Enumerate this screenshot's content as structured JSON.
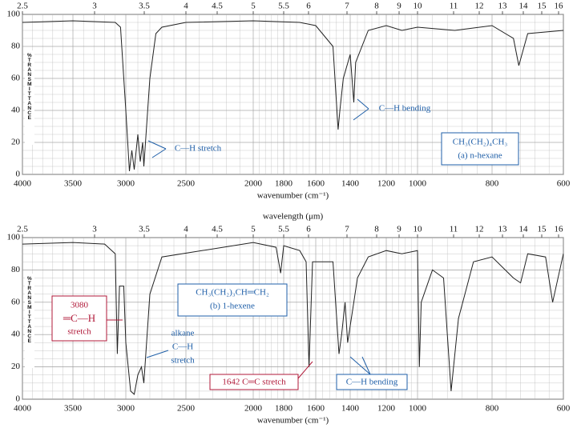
{
  "chart_data": [
    {
      "type": "line",
      "x": [
        4000,
        3500,
        3100,
        3050,
        3000,
        2970,
        2950,
        2930,
        2900,
        2880,
        2860,
        2850,
        2800,
        2750,
        2700,
        2500,
        2000,
        1700,
        1600,
        1500,
        1470,
        1460,
        1440,
        1400,
        1380,
        1370,
        1300,
        1200,
        1100,
        1000,
        900,
        800,
        740,
        725,
        700,
        600
      ],
      "values": [
        95,
        96,
        95,
        92,
        40,
        2,
        15,
        3,
        25,
        8,
        20,
        5,
        60,
        88,
        92,
        95,
        96,
        95,
        93,
        80,
        28,
        40,
        60,
        75,
        45,
        70,
        90,
        93,
        90,
        92,
        90,
        93,
        85,
        68,
        88,
        90
      ],
      "color": "#222222",
      "xlim": [
        4000,
        600
      ],
      "xticks": [
        4000,
        3500,
        3000,
        2500,
        2000,
        1800,
        1600,
        1400,
        1200,
        1000,
        800,
        600
      ],
      "x2ticks": [
        2.5,
        3,
        3.5,
        4,
        4.5,
        5,
        5.5,
        6,
        7,
        8,
        9,
        10,
        11,
        12,
        13,
        14,
        15,
        16
      ],
      "ylim": [
        0,
        100
      ],
      "yticks": [
        0,
        20,
        40,
        60,
        80,
        100
      ],
      "grid": true,
      "xlabel": "wavenumber (cm⁻¹)",
      "ylabel": "%TRANSMITTANCE",
      "formula": "CH₃(CH₂)₄CH₃",
      "caption": "(a) n-hexane",
      "annotations": [
        "C—H stretch",
        "C—H bending"
      ]
    },
    {
      "type": "line",
      "x": [
        4000,
        3500,
        3200,
        3100,
        3080,
        3060,
        3020,
        3000,
        2960,
        2930,
        2900,
        2870,
        2850,
        2800,
        2700,
        2000,
        1850,
        1820,
        1800,
        1700,
        1660,
        1642,
        1620,
        1500,
        1465,
        1450,
        1430,
        1415,
        1380,
        1360,
        1300,
        1200,
        1100,
        1000,
        995,
        990,
        960,
        930,
        910,
        890,
        850,
        800,
        740,
        720,
        700,
        650,
        630,
        600
      ],
      "values": [
        96,
        97,
        96,
        90,
        28,
        70,
        70,
        35,
        5,
        3,
        15,
        20,
        10,
        65,
        88,
        97,
        94,
        78,
        95,
        92,
        85,
        20,
        85,
        85,
        28,
        40,
        60,
        35,
        60,
        75,
        88,
        92,
        90,
        92,
        20,
        60,
        80,
        75,
        5,
        50,
        85,
        88,
        75,
        72,
        90,
        88,
        60,
        90
      ],
      "color": "#222222",
      "xlim": [
        4000,
        600
      ],
      "xticks": [
        4000,
        3500,
        3000,
        2500,
        2000,
        1800,
        1600,
        1400,
        1200,
        1000,
        800,
        600
      ],
      "x2ticks": [
        2.5,
        3,
        3.5,
        4,
        4.5,
        5,
        5.5,
        6,
        7,
        8,
        9,
        10,
        11,
        12,
        13,
        14,
        15,
        16
      ],
      "x2label": "wavelength (μm)",
      "ylim": [
        0,
        100
      ],
      "yticks": [
        0,
        20,
        40,
        60,
        80,
        100
      ],
      "grid": true,
      "xlabel": "wavenumber (cm⁻¹)",
      "ylabel": "%TRANSMITTANCE",
      "formula": "CH₃(CH₂)₃CH═CH₂",
      "caption": "(b) 1-hexene",
      "annotations": [
        "3080",
        "═C—H",
        "stretch",
        "alkane",
        "C—H",
        "stretch",
        "1642 C═C stretch",
        "C—H bending"
      ]
    }
  ]
}
